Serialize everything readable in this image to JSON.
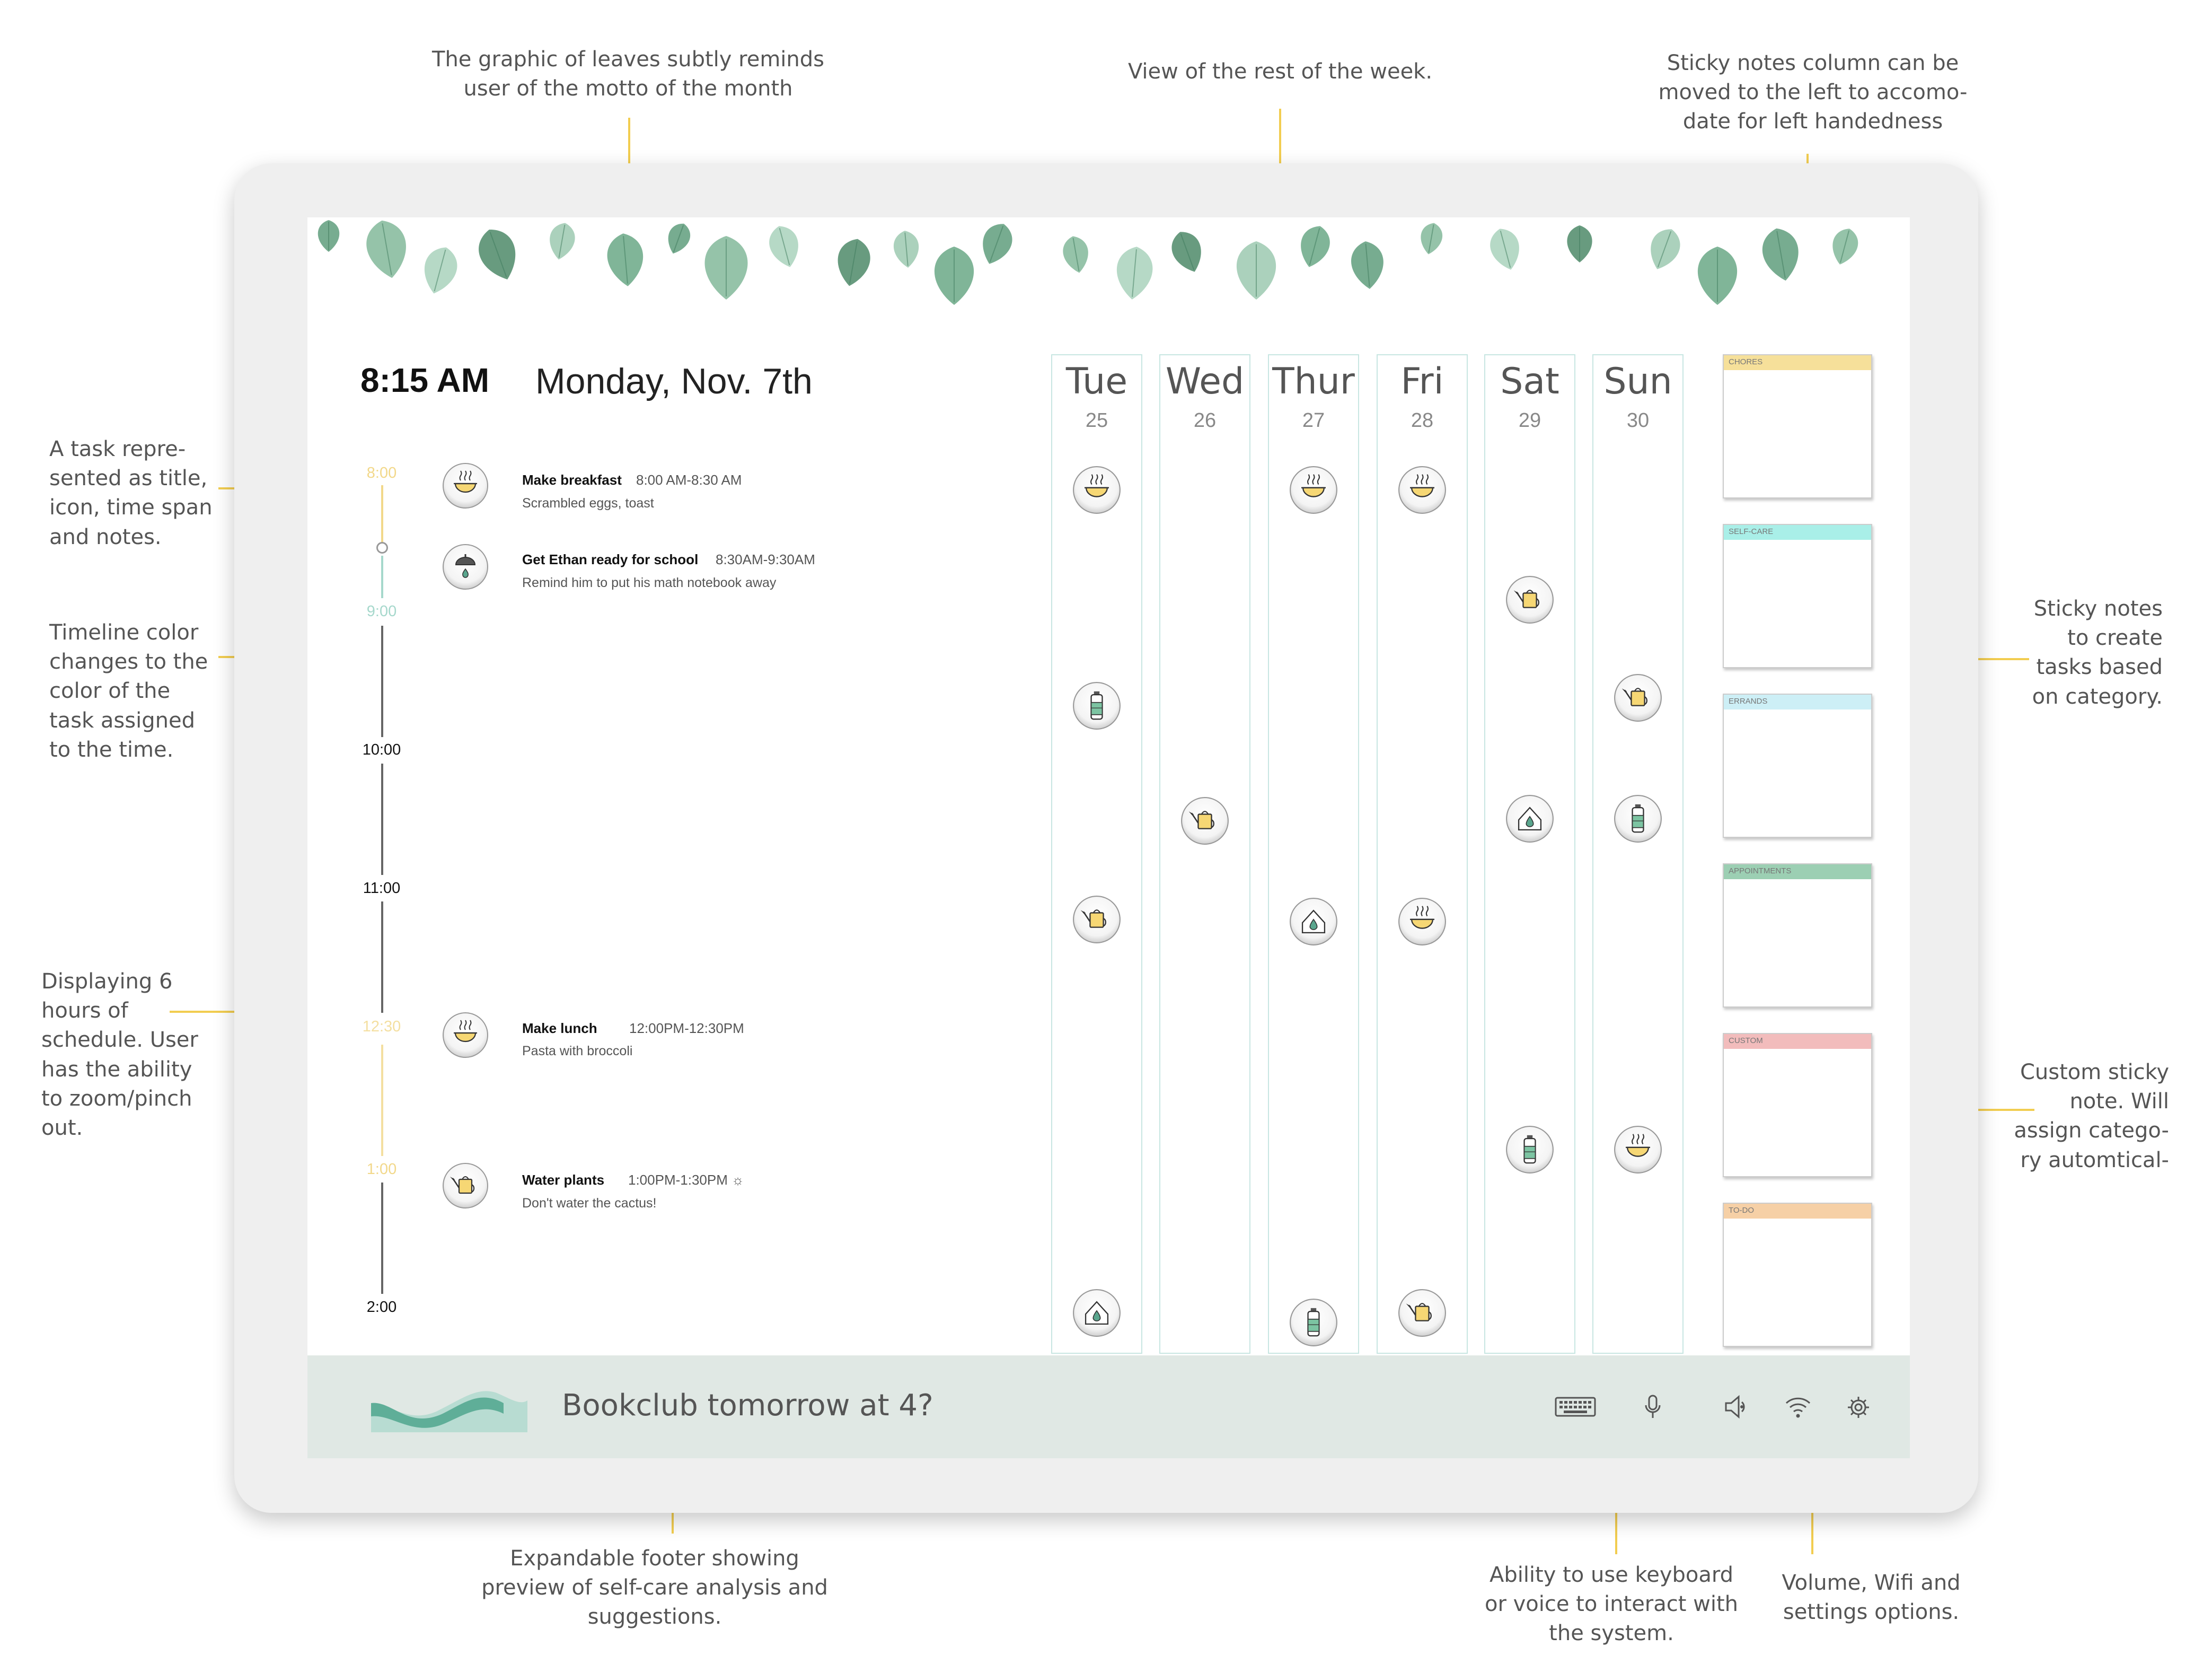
{
  "annotations": {
    "leaves_graphic": [
      "The graphic of leaves subtly reminds",
      "user of the motto of the month"
    ],
    "week_view": [
      "View of the rest of the week."
    ],
    "sticky_column": [
      "Sticky notes column can be",
      "moved to the left to accomo-",
      "date for left handedness"
    ],
    "task_repr": [
      "A task repre-",
      "sented as title,",
      "icon, time span",
      "and notes."
    ],
    "timeline_color": [
      "Timeline color",
      "changes to the",
      "color of the",
      "task assigned",
      "to the time."
    ],
    "six_hours": [
      "Displaying 6",
      "hours of",
      "schedule. User",
      "has the ability",
      "to zoom/pinch",
      "out."
    ],
    "sticky_create": [
      "Sticky notes",
      "to create",
      "tasks based",
      "on category."
    ],
    "custom_sticky": [
      "Custom sticky",
      "note. Will",
      "assign catego-",
      "ry automtical-"
    ],
    "footer_expand": [
      "Expandable footer showing",
      "preview of self-care analysis and",
      "suggestions."
    ],
    "keyboard_voice": [
      "Ability to use keyboard",
      "or voice to interact with",
      "the system."
    ],
    "settings_opts": [
      "Volume, Wifi and",
      "settings options."
    ]
  },
  "clock": {
    "time": "8:15 AM",
    "date": "Monday, Nov. 7th"
  },
  "timeline": {
    "labels": [
      {
        "text": "8:00",
        "color": "#f2d88a"
      },
      {
        "text": "9:00",
        "color": "#a6d8cc"
      },
      {
        "text": "10:00",
        "color": "#111111"
      },
      {
        "text": "11:00",
        "color": "#111111"
      },
      {
        "text": "12:30",
        "color": "#f4dfa0"
      },
      {
        "text": "1:00",
        "color": "#f2d88a"
      },
      {
        "text": "2:00",
        "color": "#111111"
      }
    ]
  },
  "tasks": [
    {
      "title": "Make breakfast",
      "time": "8:00 AM-8:30 AM",
      "note": "Scrambled eggs, toast",
      "icon": "soup-bowl-icon"
    },
    {
      "title": "Get Ethan ready for school",
      "time": "8:30AM-9:30AM",
      "note": "Remind him to put his math notebook away",
      "icon": "shower-icon"
    },
    {
      "title": "Make lunch",
      "time": "12:00PM-12:30PM",
      "note": "Pasta with broccoli",
      "icon": "soup-bowl-icon"
    },
    {
      "title": "Water plants",
      "time": "1:00PM-1:30PM ☼",
      "note": "Don't water the cactus!",
      "icon": "watering-can-icon"
    }
  ],
  "week": [
    {
      "name": "Tue",
      "num": "25",
      "icons": [
        "soup-bowl-icon",
        "water-bottle-icon",
        "watering-can-icon",
        "house-drop-icon"
      ]
    },
    {
      "name": "Wed",
      "num": "26",
      "icons": [
        "watering-can-icon"
      ]
    },
    {
      "name": "Thur",
      "num": "27",
      "icons": [
        "soup-bowl-icon",
        "house-drop-icon",
        "water-bottle-icon"
      ]
    },
    {
      "name": "Fri",
      "num": "28",
      "icons": [
        "soup-bowl-icon",
        "soup-bowl-icon",
        "watering-can-icon"
      ]
    },
    {
      "name": "Sat",
      "num": "29",
      "icons": [
        "watering-can-icon",
        "house-drop-icon",
        "water-bottle-icon"
      ]
    },
    {
      "name": "Sun",
      "num": "30",
      "icons": [
        "watering-can-icon",
        "water-bottle-icon",
        "soup-bowl-icon"
      ]
    }
  ],
  "stickies": [
    {
      "label": "CHORES",
      "color": "#f6e09a"
    },
    {
      "label": "SELF-CARE",
      "color": "#a9efe8"
    },
    {
      "label": "ERRANDS",
      "color": "#cdeff6"
    },
    {
      "label": "APPOINTMENTS",
      "color": "#9ccfb3"
    },
    {
      "label": "CUSTOM",
      "color": "#f2bcbc"
    },
    {
      "label": "TO-DO",
      "color": "#f6d0a6"
    }
  ],
  "footer": {
    "text": "Bookclub tomorrow at 4?",
    "icons": [
      "keyboard-icon",
      "microphone-icon",
      "volume-icon",
      "wifi-icon",
      "settings-icon"
    ]
  }
}
